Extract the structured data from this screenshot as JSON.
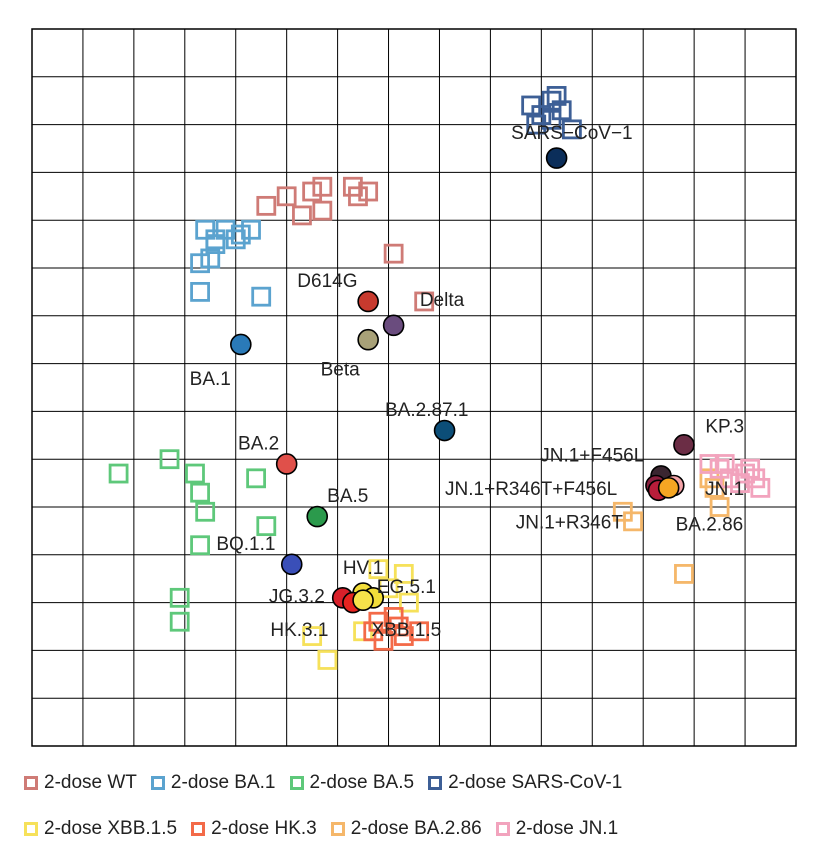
{
  "chart_data": {
    "type": "scatter",
    "title": "",
    "xlabel": "",
    "ylabel": "",
    "grid": true,
    "legend_placement": "bottom",
    "antigens": [
      {
        "name": "SARS−CoV−1",
        "x": 10.3,
        "y": 12.3,
        "color": "#0b2e5a",
        "label_dx": 0.3,
        "label_dy": 0.55,
        "anchor": "middle"
      },
      {
        "name": "D614G",
        "x": 6.6,
        "y": 9.3,
        "color": "#c83a2e",
        "label_dx": -0.8,
        "label_dy": 0.45,
        "anchor": "middle"
      },
      {
        "name": "Delta",
        "x": 7.1,
        "y": 8.8,
        "color": "#6a4c7e",
        "label_dx": 0.95,
        "label_dy": 0.55,
        "anchor": "middle"
      },
      {
        "name": "Beta",
        "x": 6.6,
        "y": 8.5,
        "color": "#a8a178",
        "label_dx": -0.55,
        "label_dy": -0.6,
        "anchor": "middle"
      },
      {
        "name": "BA.1",
        "x": 4.1,
        "y": 8.4,
        "color": "#2a7ab8",
        "label_dx": -0.6,
        "label_dy": -0.7,
        "anchor": "middle"
      },
      {
        "name": "BA.2.87.1",
        "x": 8.1,
        "y": 6.6,
        "color": "#0c4e78",
        "label_dx": -0.35,
        "label_dy": 0.45,
        "anchor": "middle"
      },
      {
        "name": "BA.2",
        "x": 5.0,
        "y": 5.9,
        "color": "#e0504a",
        "label_dx": -0.55,
        "label_dy": 0.45,
        "anchor": "middle"
      },
      {
        "name": "BA.5",
        "x": 5.6,
        "y": 4.8,
        "color": "#2b9a4c",
        "label_dx": 0.6,
        "label_dy": 0.45,
        "anchor": "middle"
      },
      {
        "name": "BQ.1.1",
        "x": 5.1,
        "y": 3.8,
        "color": "#3a4fb8",
        "label_dx": -0.9,
        "label_dy": 0.45,
        "anchor": "middle"
      },
      {
        "name": "HV.1",
        "x": 6.5,
        "y": 3.2,
        "color": "#f2dd3a",
        "label_dx": 0.0,
        "label_dy": 0.55,
        "anchor": "middle"
      },
      {
        "name": "EG.5.1",
        "x": 6.7,
        "y": 3.1,
        "color": "#f2dd3a",
        "label_dx": 0.65,
        "label_dy": 0.25,
        "anchor": "middle"
      },
      {
        "name": "JG.3.2",
        "x": 6.1,
        "y": 3.1,
        "color": "#d8202a",
        "label_dx": -1.45,
        "label_dy": 0.05,
        "anchor": "start"
      },
      {
        "name": "HK.3.1",
        "x": 6.3,
        "y": 3.0,
        "color": "#e62420",
        "label_dx": -1.05,
        "label_dy": -0.55,
        "anchor": "middle"
      },
      {
        "name": "XBB.1.5",
        "x": 6.5,
        "y": 3.05,
        "color": "#f7e24a",
        "label_dx": 0.85,
        "label_dy": -0.6,
        "anchor": "middle"
      },
      {
        "name": "KP.3",
        "x": 12.8,
        "y": 6.3,
        "color": "#6b2d45",
        "label_dx": 0.8,
        "label_dy": 0.4,
        "anchor": "middle"
      },
      {
        "name": "JN.1+F456L",
        "x": 12.35,
        "y": 5.65,
        "color": "#3a2530",
        "label_dx": -1.35,
        "label_dy": 0.45,
        "anchor": "middle"
      },
      {
        "name": "JN.1+R346T+F456L",
        "x": 12.25,
        "y": 5.45,
        "color": "#8a1f3e",
        "label_dx": -2.45,
        "label_dy": -0.05,
        "anchor": "middle"
      },
      {
        "name": "JN.1",
        "x": 12.6,
        "y": 5.45,
        "color": "#f4a3a8",
        "label_dx": 1.0,
        "label_dy": -0.05,
        "anchor": "middle"
      },
      {
        "name": "JN.1+R346T",
        "x": 12.3,
        "y": 5.35,
        "color": "#b81d3a",
        "label_dx": -1.75,
        "label_dy": -0.65,
        "anchor": "middle"
      },
      {
        "name": "BA.2.86",
        "x": 12.5,
        "y": 5.4,
        "color": "#f5a623",
        "label_dx": 0.8,
        "label_dy": -0.75,
        "anchor": "middle"
      }
    ],
    "sera": [
      {
        "name": "2-dose WT",
        "color": "#cf7b76",
        "points": [
          [
            4.6,
            11.3
          ],
          [
            5.0,
            11.5
          ],
          [
            5.3,
            11.1
          ],
          [
            5.7,
            11.2
          ],
          [
            5.7,
            11.7
          ],
          [
            6.3,
            11.7
          ],
          [
            6.4,
            11.5
          ],
          [
            6.6,
            11.6
          ],
          [
            5.5,
            11.6
          ],
          [
            7.1,
            10.3
          ],
          [
            7.7,
            9.3
          ]
        ]
      },
      {
        "name": "2-dose BA.1",
        "color": "#5ba3cf",
        "points": [
          [
            3.4,
            10.8
          ],
          [
            3.6,
            10.6
          ],
          [
            3.8,
            10.8
          ],
          [
            4.1,
            10.7
          ],
          [
            4.3,
            10.8
          ],
          [
            3.5,
            10.2
          ],
          [
            3.3,
            10.1
          ],
          [
            4.5,
            9.4
          ],
          [
            3.3,
            9.5
          ],
          [
            3.6,
            10.5
          ],
          [
            4.0,
            10.6
          ]
        ]
      },
      {
        "name": "2-dose BA.5",
        "color": "#5ec87a",
        "points": [
          [
            1.7,
            5.7
          ],
          [
            2.7,
            6.0
          ],
          [
            3.2,
            5.7
          ],
          [
            3.3,
            5.3
          ],
          [
            3.4,
            4.9
          ],
          [
            4.4,
            5.6
          ],
          [
            4.6,
            4.6
          ],
          [
            3.3,
            4.2
          ],
          [
            2.9,
            3.1
          ],
          [
            2.9,
            2.6
          ]
        ]
      },
      {
        "name": "2-dose SARS-CoV-1",
        "color": "#3d5f96",
        "points": [
          [
            9.8,
            13.4
          ],
          [
            10.2,
            13.5
          ],
          [
            10.4,
            13.3
          ],
          [
            10.0,
            13.2
          ],
          [
            10.3,
            13.6
          ],
          [
            9.9,
            13.0
          ],
          [
            10.2,
            13.1
          ],
          [
            10.6,
            12.9
          ]
        ]
      },
      {
        "name": "2-dose XBB.1.5",
        "color": "#f6e15a",
        "points": [
          [
            7.3,
            3.6
          ],
          [
            7.0,
            3.3
          ],
          [
            7.4,
            3.0
          ],
          [
            6.5,
            2.4
          ],
          [
            5.5,
            2.3
          ],
          [
            5.8,
            1.8
          ],
          [
            6.8,
            3.7
          ]
        ]
      },
      {
        "name": "2-dose HK.3",
        "color": "#f36a48",
        "points": [
          [
            6.8,
            2.6
          ],
          [
            7.2,
            2.5
          ],
          [
            7.3,
            2.3
          ],
          [
            7.6,
            2.4
          ],
          [
            6.9,
            2.2
          ],
          [
            7.1,
            2.7
          ],
          [
            6.7,
            2.4
          ]
        ]
      },
      {
        "name": "2-dose BA.2.86",
        "color": "#f5b76a",
        "points": [
          [
            11.8,
            4.7
          ],
          [
            13.3,
            5.6
          ],
          [
            13.5,
            5.0
          ],
          [
            12.8,
            3.6
          ],
          [
            13.4,
            5.4
          ],
          [
            11.6,
            4.9
          ]
        ]
      },
      {
        "name": "2-dose JN.1",
        "color": "#f2a3bd",
        "points": [
          [
            13.3,
            5.9
          ],
          [
            13.5,
            5.8
          ],
          [
            13.7,
            5.6
          ],
          [
            14.0,
            5.7
          ],
          [
            14.2,
            5.6
          ],
          [
            14.3,
            5.4
          ],
          [
            13.6,
            5.9
          ],
          [
            14.1,
            5.8
          ],
          [
            13.9,
            5.5
          ]
        ]
      }
    ],
    "grid_cells": [
      15,
      15
    ]
  }
}
